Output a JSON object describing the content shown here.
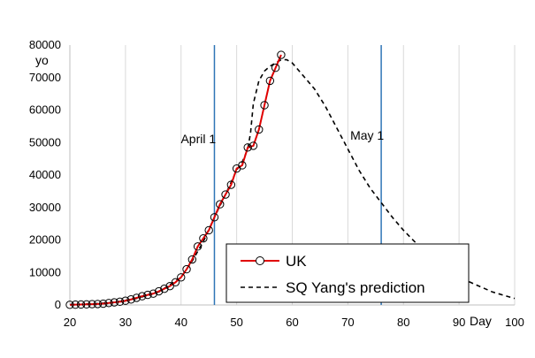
{
  "chart_data": {
    "type": "line",
    "title": "",
    "xlabel": "Day",
    "ylabel": "yo",
    "xlim": [
      20,
      100
    ],
    "ylim": [
      0,
      80000
    ],
    "x_ticks": [
      20,
      30,
      40,
      50,
      60,
      70,
      80,
      90,
      100
    ],
    "y_ticks": [
      0,
      10000,
      20000,
      30000,
      40000,
      50000,
      60000,
      70000,
      80000
    ],
    "grid": "vertical",
    "legend_position": "bottom-right",
    "vlines": [
      {
        "x": 46,
        "label": "April 1",
        "color": "#2e75b6"
      },
      {
        "x": 76,
        "label": "May 1",
        "color": "#2e75b6"
      }
    ],
    "series": [
      {
        "name": "UK",
        "style": "solid-with-circle-markers",
        "color": "#e00000",
        "marker_color": "#000000",
        "x": [
          20,
          21,
          22,
          23,
          24,
          25,
          26,
          27,
          28,
          29,
          30,
          31,
          32,
          33,
          34,
          35,
          36,
          37,
          38,
          39,
          40,
          41,
          42,
          43,
          44,
          45,
          46,
          47,
          48,
          49,
          50,
          51,
          52,
          53,
          54,
          55,
          56,
          57,
          58
        ],
        "values": [
          50,
          100,
          150,
          200,
          250,
          300,
          400,
          600,
          800,
          1000,
          1300,
          1700,
          2200,
          2700,
          3100,
          3500,
          4200,
          5000,
          5800,
          7000,
          8500,
          11000,
          14000,
          18000,
          20500,
          23000,
          27000,
          31000,
          34000,
          37000,
          42000,
          43000,
          48500,
          49000,
          54000,
          61500,
          69000,
          73000,
          77000
        ]
      },
      {
        "name": "SQ Yang's prediction",
        "style": "dashed",
        "color": "#000000",
        "x": [
          20,
          24,
          28,
          32,
          36,
          40,
          42,
          44,
          46,
          48,
          50,
          51,
          52,
          52.5,
          53,
          54,
          55,
          56,
          57,
          58,
          59,
          60,
          62,
          64,
          66,
          68,
          70,
          72,
          74,
          76,
          78,
          80,
          82,
          84,
          86,
          88,
          90,
          92,
          94,
          96,
          98,
          100
        ],
        "values": [
          100,
          300,
          800,
          2000,
          4000,
          8500,
          13500,
          19500,
          27000,
          34000,
          41500,
          44000,
          48000,
          53000,
          62000,
          69000,
          72000,
          73500,
          74500,
          75500,
          75500,
          74500,
          70500,
          66500,
          61000,
          54500,
          48000,
          41500,
          36000,
          31500,
          27000,
          23000,
          19500,
          16500,
          13500,
          10500,
          8500,
          7000,
          5500,
          4000,
          3000,
          2000
        ]
      }
    ]
  }
}
